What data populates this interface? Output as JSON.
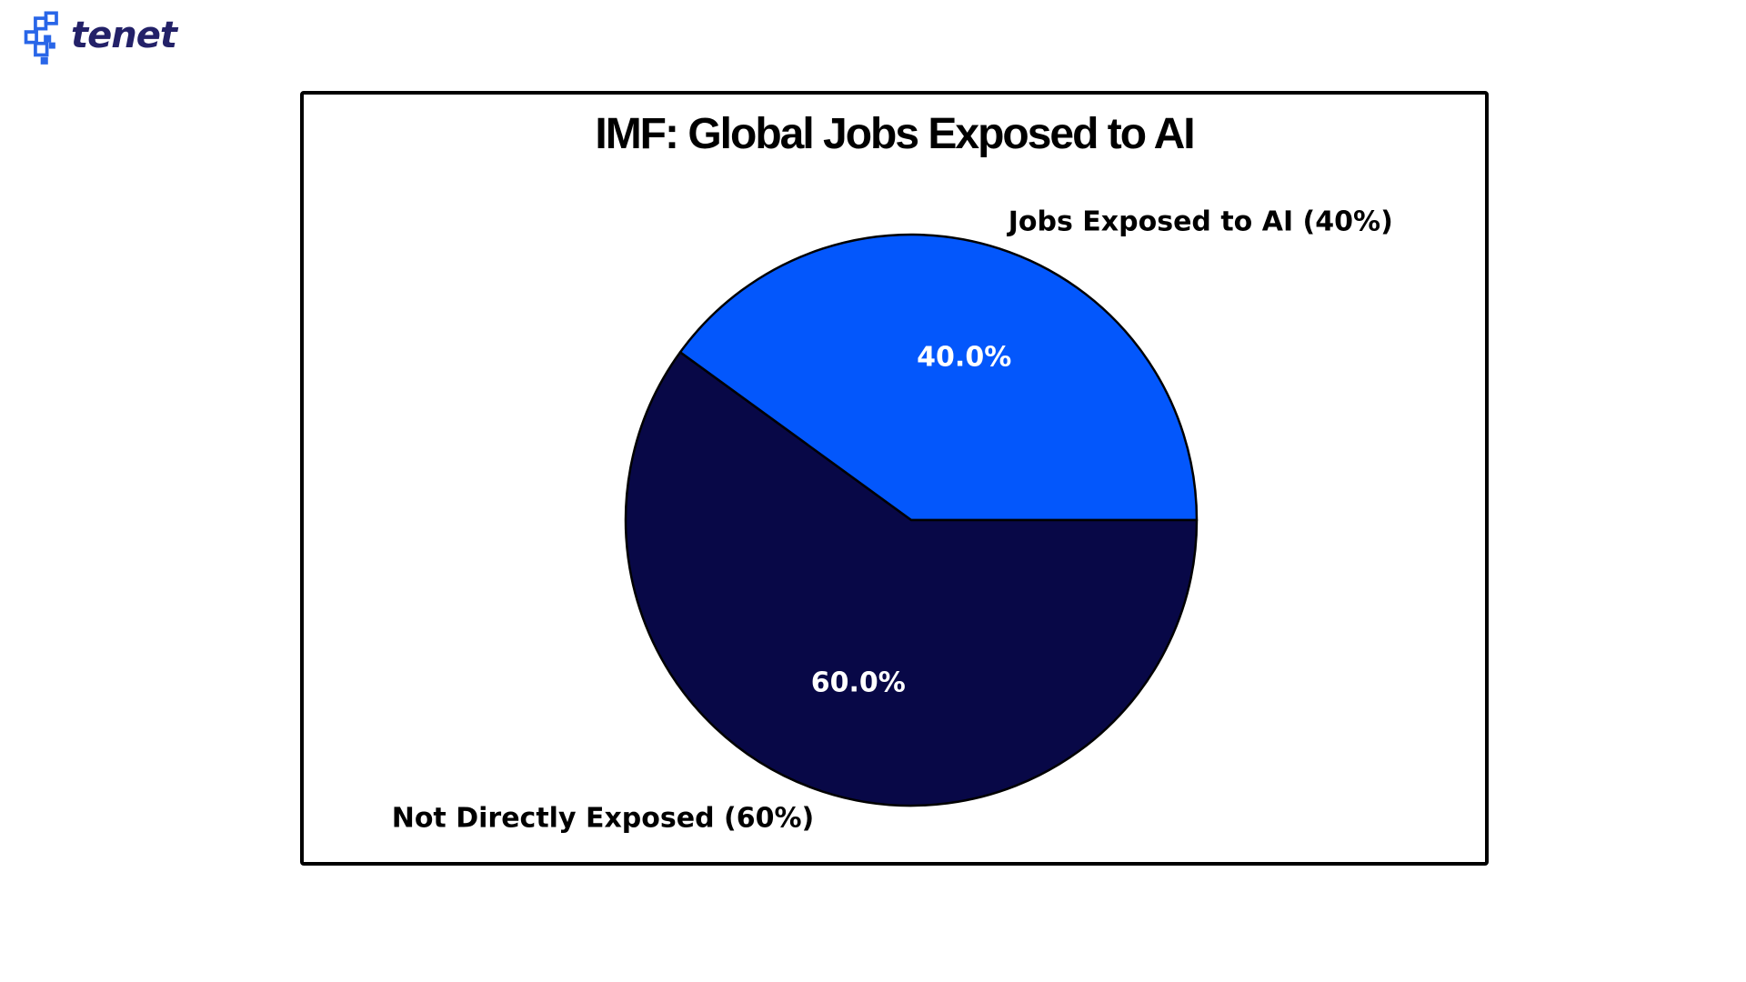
{
  "page": {
    "background_color": "#ffffff"
  },
  "logo": {
    "brand": "tenet",
    "icon": "tenet-pixel-squares-icon",
    "icon_color": "#2966E8",
    "text_color": "#232168"
  },
  "figure": {
    "border_color": "#000000",
    "background_color": "#ffffff"
  },
  "chart_data": {
    "type": "pie",
    "title": "IMF: Global Jobs Exposed to AI",
    "slices": [
      {
        "label": "Jobs Exposed to AI (40%)",
        "value": 40,
        "pct_text": "40.0%",
        "color": "#0357FC"
      },
      {
        "label": "Not Directly Exposed (60%)",
        "value": 60,
        "pct_text": "60.0%",
        "color": "#080847"
      }
    ],
    "start_angle_deg": 0,
    "direction": "counterclockwise",
    "edge_color": "#000000",
    "pct_label_color": "#ffffff",
    "outer_label_color": "#000000",
    "pct_distance": 0.6,
    "label_distance": 1.1,
    "legend": "none"
  }
}
